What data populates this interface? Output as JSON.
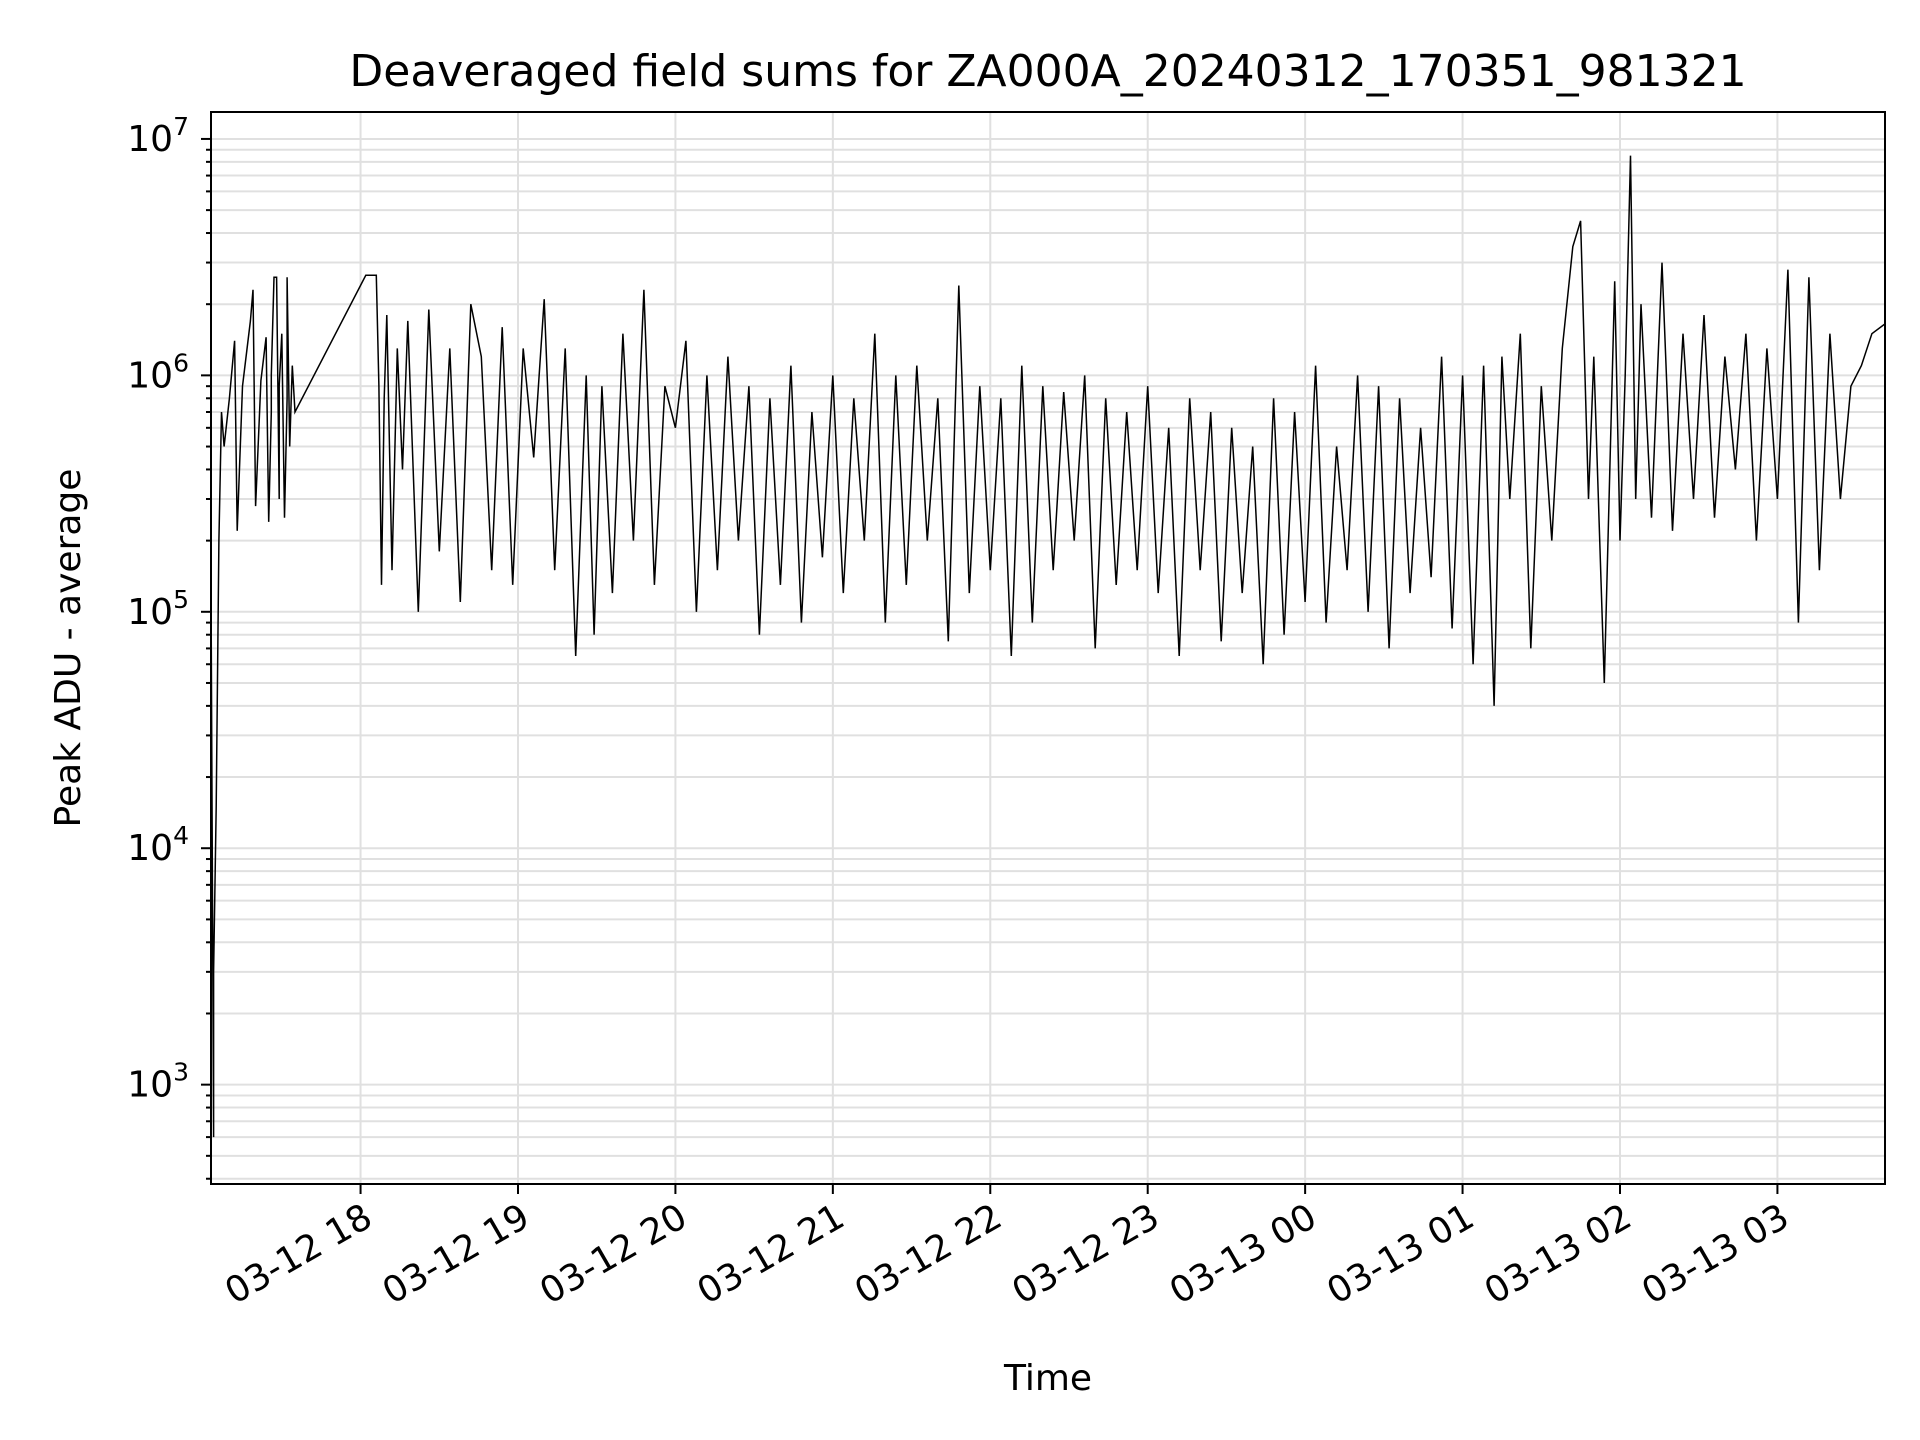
{
  "chart_data": {
    "type": "line",
    "title": "Deaveraged field sums for ZA000A_20240312_170351_981321",
    "xlabel": "Time",
    "ylabel": "Peak ADU - average",
    "yscale": "log",
    "ylim": [
      380,
      13000000
    ],
    "xlim": [
      "03-12 17:03",
      "03-13 03:41"
    ],
    "grid": true,
    "line_color": "#000000",
    "grid_color": "#e0e0e0",
    "x_ticks": [
      "03-12 18",
      "03-12 19",
      "03-12 20",
      "03-12 21",
      "03-12 22",
      "03-12 23",
      "03-13 00",
      "03-13 01",
      "03-13 02",
      "03-13 03"
    ],
    "y_ticks": [
      {
        "base": "10",
        "exp": "3",
        "value": 1000
      },
      {
        "base": "10",
        "exp": "4",
        "value": 10000
      },
      {
        "base": "10",
        "exp": "5",
        "value": 100000
      },
      {
        "base": "10",
        "exp": "6",
        "value": 1000000
      },
      {
        "base": "10",
        "exp": "7",
        "value": 10000000
      }
    ],
    "series": [
      {
        "x": [
          "03-12 17:03",
          "03-12 17:03",
          "03-12 17:04",
          "03-12 17:04",
          "03-12 17:05",
          "03-12 17:06",
          "03-12 17:07",
          "03-12 17:08",
          "03-12 17:10",
          "03-12 17:12",
          "03-12 17:13",
          "03-12 17:15",
          "03-12 17:18",
          "03-12 17:19",
          "03-12 17:20",
          "03-12 17:22",
          "03-12 17:24",
          "03-12 17:25",
          "03-12 17:26",
          "03-12 17:26",
          "03-12 17:27",
          "03-12 17:28",
          "03-12 17:29",
          "03-12 17:29",
          "03-12 17:30",
          "03-12 17:31",
          "03-12 17:32",
          "03-12 17:32",
          "03-12 17:33",
          "03-12 17:34",
          "03-12 17:35",
          "03-12 18:02",
          "03-12 18:06",
          "03-12 18:07",
          "03-12 18:08",
          "03-12 18:09",
          "03-12 18:10",
          "03-12 18:12",
          "03-12 18:14",
          "03-12 18:16",
          "03-12 18:18",
          "03-12 18:22",
          "03-12 18:26",
          "03-12 18:30",
          "03-12 18:34",
          "03-12 18:38",
          "03-12 18:42",
          "03-12 18:46",
          "03-12 18:50",
          "03-12 18:54",
          "03-12 18:58",
          "03-12 19:02",
          "03-12 19:06",
          "03-12 19:10",
          "03-12 19:14",
          "03-12 19:18",
          "03-12 19:22",
          "03-12 19:26",
          "03-12 19:29",
          "03-12 19:32",
          "03-12 19:36",
          "03-12 19:40",
          "03-12 19:44",
          "03-12 19:48",
          "03-12 19:52",
          "03-12 19:56",
          "03-12 20:00",
          "03-12 20:04",
          "03-12 20:08",
          "03-12 20:12",
          "03-12 20:16",
          "03-12 20:20",
          "03-12 20:24",
          "03-12 20:28",
          "03-12 20:32",
          "03-12 20:36",
          "03-12 20:40",
          "03-12 20:44",
          "03-12 20:48",
          "03-12 20:52",
          "03-12 20:56",
          "03-12 21:00",
          "03-12 21:04",
          "03-12 21:08",
          "03-12 21:12",
          "03-12 21:16",
          "03-12 21:20",
          "03-12 21:24",
          "03-12 21:28",
          "03-12 21:32",
          "03-12 21:36",
          "03-12 21:40",
          "03-12 21:44",
          "03-12 21:48",
          "03-12 21:52",
          "03-12 21:56",
          "03-12 22:00",
          "03-12 22:04",
          "03-12 22:08",
          "03-12 22:12",
          "03-12 22:16",
          "03-12 22:20",
          "03-12 22:24",
          "03-12 22:28",
          "03-12 22:32",
          "03-12 22:36",
          "03-12 22:40",
          "03-12 22:44",
          "03-12 22:48",
          "03-12 22:52",
          "03-12 22:56",
          "03-12 23:00",
          "03-12 23:04",
          "03-12 23:08",
          "03-12 23:12",
          "03-12 23:16",
          "03-12 23:20",
          "03-12 23:24",
          "03-12 23:28",
          "03-12 23:32",
          "03-12 23:36",
          "03-12 23:40",
          "03-12 23:44",
          "03-12 23:48",
          "03-12 23:52",
          "03-12 23:56",
          "03-13 00:00",
          "03-13 00:04",
          "03-13 00:08",
          "03-13 00:12",
          "03-13 00:16",
          "03-13 00:20",
          "03-13 00:24",
          "03-13 00:28",
          "03-13 00:32",
          "03-13 00:36",
          "03-13 00:40",
          "03-13 00:44",
          "03-13 00:48",
          "03-13 00:52",
          "03-13 00:56",
          "03-13 01:00",
          "03-13 01:04",
          "03-13 01:08",
          "03-13 01:12",
          "03-13 01:15",
          "03-13 01:18",
          "03-13 01:22",
          "03-13 01:26",
          "03-13 01:30",
          "03-13 01:34",
          "03-13 01:38",
          "03-13 01:42",
          "03-13 01:45",
          "03-13 01:48",
          "03-13 01:50",
          "03-13 01:54",
          "03-13 01:58",
          "03-13 02:00",
          "03-13 02:02",
          "03-13 02:04",
          "03-13 02:06",
          "03-13 02:08",
          "03-13 02:12",
          "03-13 02:16",
          "03-13 02:20",
          "03-13 02:24",
          "03-13 02:28",
          "03-13 02:32",
          "03-13 02:36",
          "03-13 02:40",
          "03-13 02:44",
          "03-13 02:48",
          "03-13 02:52",
          "03-13 02:56",
          "03-13 03:00",
          "03-13 03:04",
          "03-13 03:08",
          "03-13 03:12",
          "03-13 03:16",
          "03-13 03:20",
          "03-13 03:24",
          "03-13 03:28",
          "03-13 03:32",
          "03-13 03:36",
          "03-13 03:41"
        ],
        "y": [
          13000,
          130000,
          600,
          3000,
          15000,
          200000,
          700000,
          500000,
          800000,
          1400000,
          220000,
          900000,
          1700000,
          2300000,
          280000,
          950000,
          1450000,
          240000,
          700000,
          1000000,
          2600000,
          2600000,
          300000,
          900000,
          1500000,
          250000,
          800000,
          2600000,
          500000,
          1100000,
          700000,
          2650000,
          2650000,
          900000,
          130000,
          800000,
          1800000,
          150000,
          1300000,
          400000,
          1700000,
          100000,
          1900000,
          180000,
          1300000,
          110000,
          2000000,
          1200000,
          150000,
          1600000,
          130000,
          1300000,
          450000,
          2100000,
          150000,
          1300000,
          65000,
          1000000,
          80000,
          900000,
          120000,
          1500000,
          200000,
          2300000,
          130000,
          900000,
          600000,
          1400000,
          100000,
          1000000,
          150000,
          1200000,
          200000,
          900000,
          80000,
          800000,
          130000,
          1100000,
          90000,
          700000,
          170000,
          1000000,
          120000,
          800000,
          200000,
          1500000,
          90000,
          1000000,
          130000,
          1100000,
          200000,
          800000,
          75000,
          2400000,
          120000,
          900000,
          150000,
          800000,
          65000,
          1100000,
          90000,
          900000,
          150000,
          850000,
          200000,
          1000000,
          70000,
          800000,
          130000,
          700000,
          150000,
          900000,
          120000,
          600000,
          65000,
          800000,
          150000,
          700000,
          75000,
          600000,
          120000,
          500000,
          60000,
          800000,
          80000,
          700000,
          110000,
          1100000,
          90000,
          500000,
          150000,
          1000000,
          100000,
          900000,
          70000,
          800000,
          120000,
          600000,
          140000,
          1200000,
          85000,
          1000000,
          60000,
          1100000,
          40000,
          1200000,
          300000,
          1500000,
          70000,
          900000,
          200000,
          1300000,
          3500000,
          4500000,
          300000,
          1200000,
          50000,
          2500000,
          200000,
          1000000,
          8500000,
          300000,
          2000000,
          250000,
          3000000,
          220000,
          1500000,
          300000,
          1800000,
          250000,
          1200000,
          400000,
          1500000,
          200000,
          1300000,
          300000,
          2800000,
          90000,
          2600000,
          150000,
          1500000,
          300000,
          900000,
          1100000,
          1500000,
          1650000
        ]
      }
    ]
  }
}
